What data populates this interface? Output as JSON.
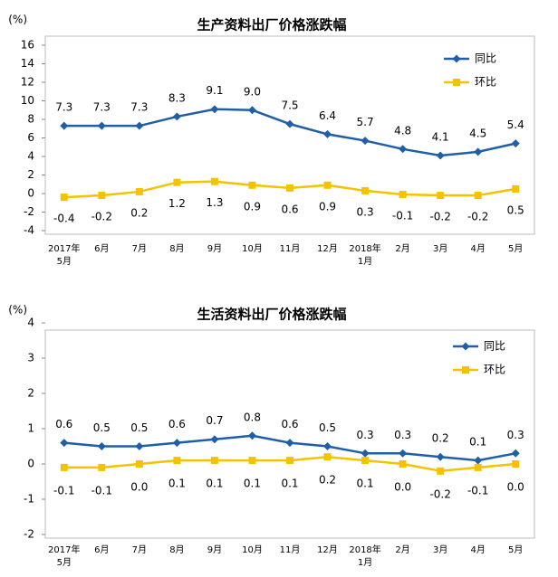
{
  "chart_data": [
    {
      "type": "line",
      "title": "生产资料出厂价格涨跌幅",
      "y_unit": "(%)",
      "categories": [
        [
          "2017年",
          "5月"
        ],
        [
          "6月"
        ],
        [
          "7月"
        ],
        [
          "8月"
        ],
        [
          "9月"
        ],
        [
          "10月"
        ],
        [
          "11月"
        ],
        [
          "12月"
        ],
        [
          "2018年",
          "1月"
        ],
        [
          "2月"
        ],
        [
          "3月"
        ],
        [
          "4月"
        ],
        [
          "5月"
        ]
      ],
      "series": [
        {
          "name": "同比",
          "color": "#1f5fa8",
          "marker": "diamond",
          "values": [
            7.3,
            7.3,
            7.3,
            8.3,
            9.1,
            9.0,
            7.5,
            6.4,
            5.7,
            4.8,
            4.1,
            4.5,
            5.4
          ],
          "value_labels": [
            "7.3",
            "7.3",
            "7.3",
            "8.3",
            "9.1",
            "9.0",
            "7.5",
            "6.4",
            "5.7",
            "4.8",
            "4.1",
            "4.5",
            "5.4"
          ]
        },
        {
          "name": "环比",
          "color": "#f5c200",
          "marker": "square",
          "values": [
            -0.4,
            -0.2,
            0.2,
            1.2,
            1.3,
            0.9,
            0.6,
            0.9,
            0.3,
            -0.1,
            -0.2,
            -0.2,
            0.5
          ],
          "value_labels": [
            "-0.4",
            "-0.2",
            "0.2",
            "1.2",
            "1.3",
            "0.9",
            "0.6",
            "0.9",
            "0.3",
            "-0.1",
            "-0.2",
            "-0.2",
            "0.5"
          ]
        }
      ],
      "ylim": [
        -4,
        16
      ],
      "yticks": [
        -4,
        -2,
        0,
        2,
        4,
        6,
        8,
        10,
        12,
        14,
        16
      ],
      "grid": false,
      "legend": "upper right"
    },
    {
      "type": "line",
      "title": "生活资料出厂价格涨跌幅",
      "y_unit": "(%)",
      "categories": [
        [
          "2017年",
          "5月"
        ],
        [
          "6月"
        ],
        [
          "7月"
        ],
        [
          "8月"
        ],
        [
          "9月"
        ],
        [
          "10月"
        ],
        [
          "11月"
        ],
        [
          "12月"
        ],
        [
          "2018年",
          "1月"
        ],
        [
          "2月"
        ],
        [
          "3月"
        ],
        [
          "4月"
        ],
        [
          "5月"
        ]
      ],
      "series": [
        {
          "name": "同比",
          "color": "#1f5fa8",
          "marker": "diamond",
          "values": [
            0.6,
            0.5,
            0.5,
            0.6,
            0.7,
            0.8,
            0.6,
            0.5,
            0.3,
            0.3,
            0.2,
            0.1,
            0.3
          ],
          "value_labels": [
            "0.6",
            "0.5",
            "0.5",
            "0.6",
            "0.7",
            "0.8",
            "0.6",
            "0.5",
            "0.3",
            "0.3",
            "0.2",
            "0.1",
            "0.3"
          ]
        },
        {
          "name": "环比",
          "color": "#f5c200",
          "marker": "square",
          "values": [
            -0.1,
            -0.1,
            0.0,
            0.1,
            0.1,
            0.1,
            0.1,
            0.2,
            0.1,
            0.0,
            -0.2,
            -0.1,
            0.0
          ],
          "value_labels": [
            "-0.1",
            "-0.1",
            "0.0",
            "0.1",
            "0.1",
            "0.1",
            "0.1",
            "0.2",
            "0.1",
            "0.0",
            "-0.2",
            "-0.1",
            "0.0"
          ]
        }
      ],
      "ylim": [
        -2,
        4
      ],
      "yticks": [
        -2,
        -1,
        0,
        1,
        2,
        3,
        4
      ],
      "grid": false,
      "legend": "upper right"
    }
  ]
}
